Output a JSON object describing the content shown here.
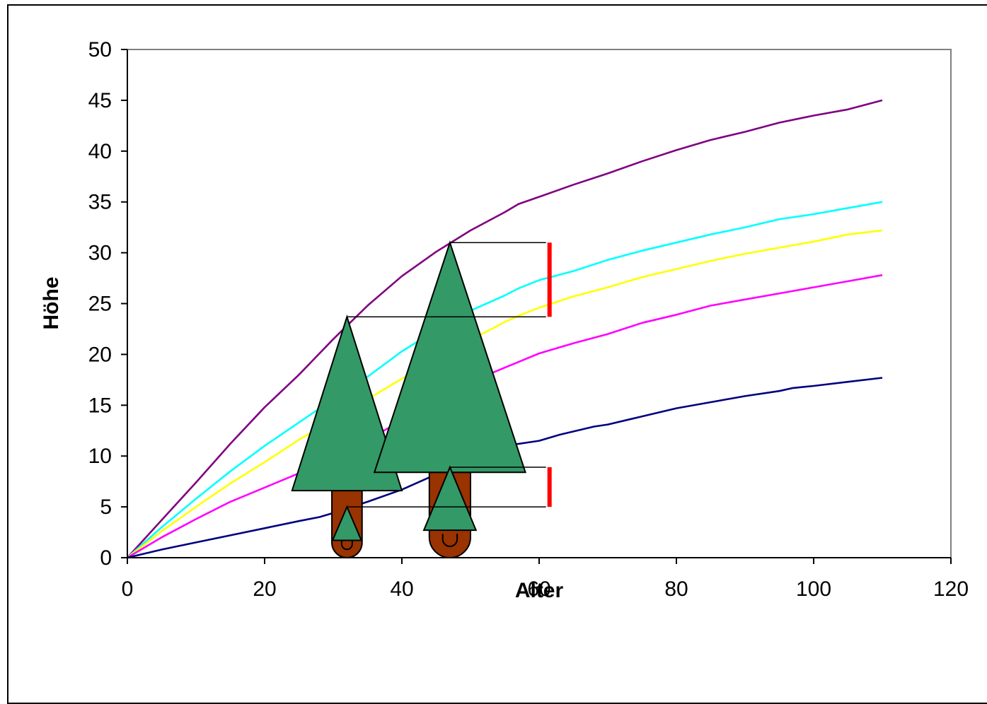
{
  "chart_data": {
    "type": "line",
    "xlabel": "Alter",
    "ylabel": "Höhe",
    "xlim": [
      0,
      120
    ],
    "ylim": [
      0,
      50
    ],
    "x_ticks": [
      0,
      20,
      40,
      60,
      80,
      100,
      120
    ],
    "y_ticks": [
      0,
      5,
      10,
      15,
      20,
      25,
      30,
      35,
      40,
      45,
      50
    ],
    "grid": false,
    "legend": "none",
    "series": [
      {
        "color": "#800080",
        "points": [
          [
            0,
            0
          ],
          [
            5,
            3.7
          ],
          [
            10,
            7.4
          ],
          [
            15,
            11.2
          ],
          [
            20,
            14.8
          ],
          [
            25,
            18
          ],
          [
            30,
            21.5
          ],
          [
            35,
            24.8
          ],
          [
            40,
            27.7
          ],
          [
            45,
            30.1
          ],
          [
            50,
            32.2
          ],
          [
            55,
            34
          ],
          [
            57,
            34.8
          ],
          [
            60,
            35.5
          ],
          [
            65,
            36.7
          ],
          [
            70,
            37.8
          ],
          [
            75,
            39
          ],
          [
            80,
            40.1
          ],
          [
            85,
            41.1
          ],
          [
            90,
            41.9
          ],
          [
            95,
            42.8
          ],
          [
            100,
            43.5
          ],
          [
            105,
            44.1
          ],
          [
            110,
            45
          ]
        ]
      },
      {
        "color": "#00ffff",
        "points": [
          [
            0,
            0
          ],
          [
            5,
            3
          ],
          [
            10,
            5.8
          ],
          [
            15,
            8.5
          ],
          [
            20,
            11
          ],
          [
            25,
            13.3
          ],
          [
            30,
            15.6
          ],
          [
            35,
            17.8
          ],
          [
            40,
            20.3
          ],
          [
            45,
            22.4
          ],
          [
            50,
            24.3
          ],
          [
            55,
            25.8
          ],
          [
            57,
            26.5
          ],
          [
            60,
            27.3
          ],
          [
            65,
            28.2
          ],
          [
            70,
            29.3
          ],
          [
            75,
            30.2
          ],
          [
            80,
            31
          ],
          [
            85,
            31.8
          ],
          [
            90,
            32.5
          ],
          [
            95,
            33.3
          ],
          [
            100,
            33.8
          ],
          [
            105,
            34.4
          ],
          [
            110,
            35
          ]
        ]
      },
      {
        "color": "#ffff00",
        "points": [
          [
            0,
            0
          ],
          [
            5,
            2.6
          ],
          [
            10,
            5
          ],
          [
            15,
            7.3
          ],
          [
            20,
            9.4
          ],
          [
            25,
            11.6
          ],
          [
            30,
            13.6
          ],
          [
            35,
            15.6
          ],
          [
            40,
            17.6
          ],
          [
            45,
            19.5
          ],
          [
            50,
            21.4
          ],
          [
            55,
            23.2
          ],
          [
            57,
            23.8
          ],
          [
            60,
            24.6
          ],
          [
            65,
            25.7
          ],
          [
            70,
            26.6
          ],
          [
            75,
            27.6
          ],
          [
            80,
            28.4
          ],
          [
            85,
            29.2
          ],
          [
            90,
            29.9
          ],
          [
            95,
            30.5
          ],
          [
            100,
            31.1
          ],
          [
            105,
            31.8
          ],
          [
            110,
            32.2
          ]
        ]
      },
      {
        "color": "#ff00ff",
        "points": [
          [
            0,
            0
          ],
          [
            5,
            2
          ],
          [
            10,
            3.8
          ],
          [
            15,
            5.5
          ],
          [
            20,
            6.9
          ],
          [
            25,
            8.3
          ],
          [
            30,
            9.8
          ],
          [
            35,
            11.6
          ],
          [
            40,
            13.5
          ],
          [
            45,
            15.5
          ],
          [
            50,
            17.3
          ],
          [
            55,
            18.7
          ],
          [
            60,
            20.1
          ],
          [
            65,
            21.1
          ],
          [
            70,
            22
          ],
          [
            75,
            23.1
          ],
          [
            80,
            23.9
          ],
          [
            85,
            24.8
          ],
          [
            90,
            25.4
          ],
          [
            95,
            26
          ],
          [
            100,
            26.6
          ],
          [
            105,
            27.2
          ],
          [
            110,
            27.8
          ]
        ]
      },
      {
        "color": "#000080",
        "points": [
          [
            0,
            0
          ],
          [
            5,
            0.8
          ],
          [
            10,
            1.5
          ],
          [
            15,
            2.2
          ],
          [
            20,
            2.9
          ],
          [
            25,
            3.6
          ],
          [
            28,
            4
          ],
          [
            30,
            4.4
          ],
          [
            35,
            5.5
          ],
          [
            40,
            6.7
          ],
          [
            45,
            8.2
          ],
          [
            50,
            9.8
          ],
          [
            55,
            11
          ],
          [
            60,
            11.5
          ],
          [
            63,
            12.1
          ],
          [
            68,
            12.9
          ],
          [
            70,
            13.1
          ],
          [
            75,
            13.9
          ],
          [
            80,
            14.7
          ],
          [
            85,
            15.3
          ],
          [
            90,
            15.9
          ],
          [
            95,
            16.4
          ],
          [
            97,
            16.7
          ],
          [
            100,
            16.9
          ],
          [
            105,
            17.3
          ],
          [
            110,
            17.7
          ]
        ]
      }
    ],
    "annotations": {
      "trees": [
        {
          "x": 32,
          "crown_top": 23.7,
          "crown_base": 6.6,
          "crown_half_width": 8,
          "trunk_top": 6.6,
          "trunk_half_width": 2.2
        },
        {
          "x": 47,
          "crown_top": 31,
          "crown_base": 8.4,
          "crown_half_width": 11,
          "trunk_top": 8.4,
          "trunk_half_width": 3
        },
        {
          "x": 32,
          "crown_top": 5,
          "crown_base": 1.7,
          "crown_half_width": 2.1
        },
        {
          "x": 47,
          "crown_top": 8.9,
          "crown_base": 2.7,
          "crown_half_width": 3.8
        }
      ],
      "guide_lines": [
        {
          "x1": 32,
          "x2": 61,
          "y": 23.7
        },
        {
          "x1": 47,
          "x2": 61,
          "y": 31
        },
        {
          "x1": 32,
          "x2": 61,
          "y": 5
        },
        {
          "x1": 47,
          "x2": 61,
          "y": 8.9
        }
      ],
      "brackets": [
        {
          "x": 61,
          "y1": 23.7,
          "y2": 31,
          "color": "#ff0000"
        },
        {
          "x": 61,
          "y1": 5,
          "y2": 8.9,
          "color": "#ff0000"
        }
      ],
      "tree_colors": {
        "crown": "#339966",
        "trunk": "#993300"
      }
    }
  }
}
